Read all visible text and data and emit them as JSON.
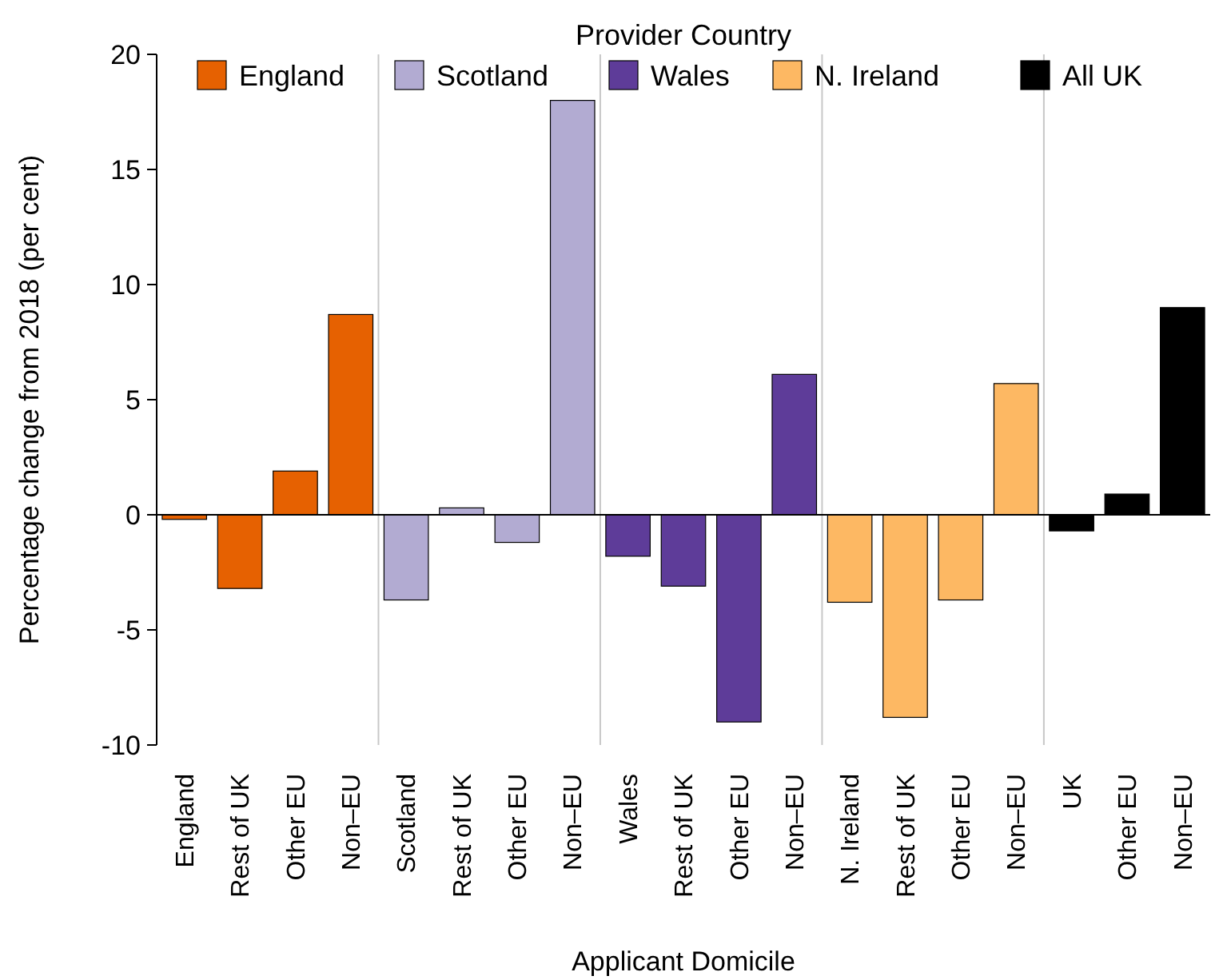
{
  "chart_data": {
    "type": "bar",
    "xlabel": "Applicant Domicile",
    "ylabel": "Percentage change from 2018 (per cent)",
    "legend_title": "Provider Country",
    "legend": "top",
    "categories": [
      "England",
      "Rest of UK",
      "Other EU",
      "Non–EU",
      "Scotland",
      "Rest of UK",
      "Other EU",
      "Non–EU",
      "Wales",
      "Rest of UK",
      "Other EU",
      "Non–EU",
      "N. Ireland",
      "Rest of UK",
      "Other EU",
      "Non–EU",
      "UK",
      "Other EU",
      "Non–EU"
    ],
    "series": [
      {
        "name": "England",
        "color": "#e66101",
        "values": [
          -0.2,
          -3.2,
          1.9,
          8.7,
          null,
          null,
          null,
          null,
          null,
          null,
          null,
          null,
          null,
          null,
          null,
          null,
          null,
          null,
          null
        ]
      },
      {
        "name": "Scotland",
        "color": "#b2abd2",
        "values": [
          null,
          null,
          null,
          null,
          -3.7,
          0.3,
          -1.2,
          18.0,
          null,
          null,
          null,
          null,
          null,
          null,
          null,
          null,
          null,
          null,
          null
        ]
      },
      {
        "name": "Wales",
        "color": "#5e3c99",
        "values": [
          null,
          null,
          null,
          null,
          null,
          null,
          null,
          null,
          -1.8,
          -3.1,
          -9.0,
          6.1,
          null,
          null,
          null,
          null,
          null,
          null,
          null
        ]
      },
      {
        "name": "N. Ireland",
        "color": "#fdb863",
        "values": [
          null,
          null,
          null,
          null,
          null,
          null,
          null,
          null,
          null,
          null,
          null,
          null,
          -3.8,
          -8.8,
          -3.7,
          5.7,
          null,
          null,
          null
        ]
      },
      {
        "name": "All UK",
        "color": "#000000",
        "values": [
          null,
          null,
          null,
          null,
          null,
          null,
          null,
          null,
          null,
          null,
          null,
          null,
          null,
          null,
          null,
          null,
          -0.7,
          0.9,
          9.0
        ]
      }
    ],
    "ylim": [
      -10,
      20
    ],
    "yticks": [
      -10,
      -5,
      0,
      5,
      10,
      15,
      20
    ],
    "grid": false
  }
}
